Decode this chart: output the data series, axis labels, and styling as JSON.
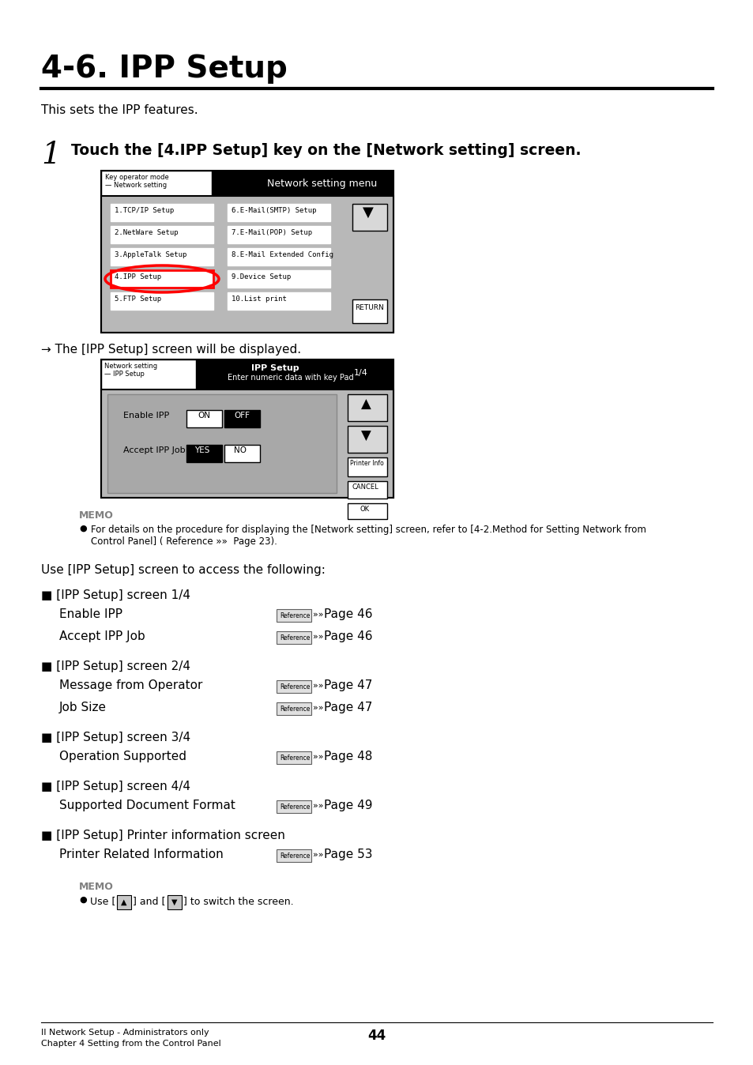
{
  "title": "4-6. IPP Setup",
  "subtitle": "This sets the IPP features.",
  "step1_text": "Touch the [4.IPP Setup] key on the [Network setting] screen.",
  "arrow_text": "→ The [IPP Setup] screen will be displayed.",
  "memo_text": "MEMO",
  "memo_bullet": "For details on the procedure for displaying the [Network setting] screen, refer to [4-2.Method for Setting Network from\nControl Panel] ( Reference »»  Page 23).",
  "use_text": "Use [IPP Setup] screen to access the following:",
  "sections": [
    {
      "header": "■ [IPP Setup] screen 1/4",
      "items": [
        {
          "label": "Enable IPP",
          "page": "Page 46"
        },
        {
          "label": "Accept IPP Job",
          "page": "Page 46"
        }
      ]
    },
    {
      "header": "■ [IPP Setup] screen 2/4",
      "items": [
        {
          "label": "Message from Operator",
          "page": "Page 47"
        },
        {
          "label": "Job Size",
          "page": "Page 47"
        }
      ]
    },
    {
      "header": "■ [IPP Setup] screen 3/4",
      "items": [
        {
          "label": "Operation Supported",
          "page": "Page 48"
        }
      ]
    },
    {
      "header": "■ [IPP Setup] screen 4/4",
      "items": [
        {
          "label": "Supported Document Format",
          "page": "Page 49"
        }
      ]
    },
    {
      "header": "■ [IPP Setup] Printer information screen",
      "items": [
        {
          "label": "Printer Related Information",
          "page": "Page 53"
        }
      ]
    }
  ],
  "footer_left1": "II Network Setup - Administrators only",
  "footer_left2": "Chapter 4 Setting from the Control Panel",
  "footer_page": "44",
  "bg_color": "#ffffff",
  "text_color": "#000000",
  "screen1_menu_left": [
    "1.TCP/IP Setup",
    "2.NetWare Setup",
    "3.AppleTalk Setup",
    "4.IPP Setup",
    "5.FTP Setup"
  ],
  "screen1_menu_right": [
    "6.E-Mail(SMTP) Setup",
    "7.E-Mail(POP) Setup",
    "8.E-Mail Extended Config",
    "9.Device Setup",
    "10.List print"
  ]
}
